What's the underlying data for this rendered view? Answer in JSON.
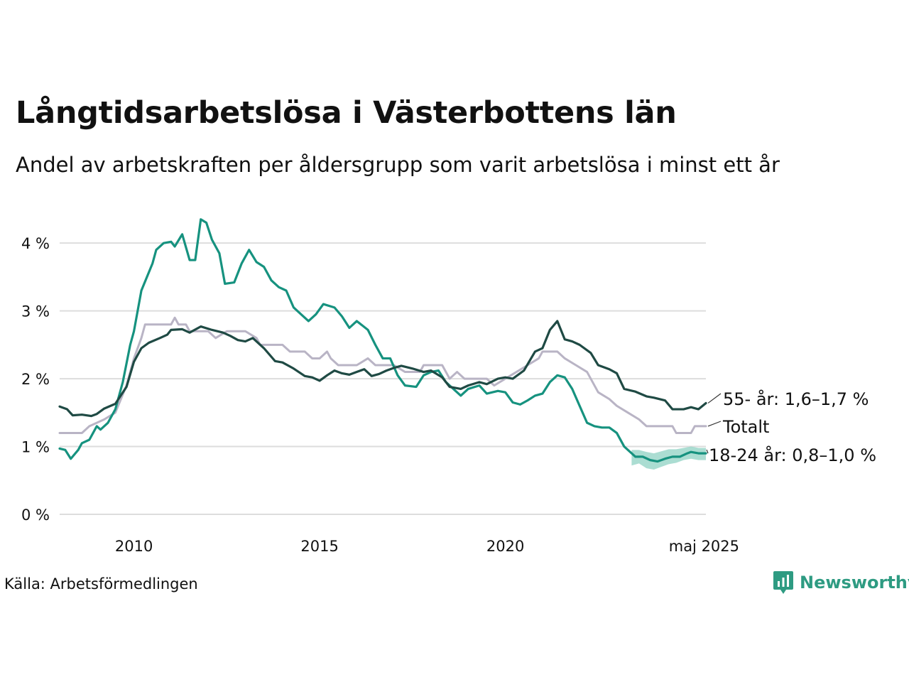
{
  "title": "Långtidsarbetslösa i Västerbottens län",
  "subtitle": "Andel av arbetskraften per åldersgrupp som varit arbetslösa i minst ett år",
  "source": "Källa: Arbetsförmedlingen",
  "brand": "Newsworthy",
  "colors": {
    "older": "#1f4a44",
    "total": "#b9b4c5",
    "youth": "#16927f",
    "youth_band": "#8fd1c3",
    "grid": "#dddddd",
    "brand": "#2e9b82"
  },
  "chart_data": {
    "type": "line",
    "ylim": [
      0,
      4.4
    ],
    "yticks": [
      {
        "value": 0,
        "label": "0 %"
      },
      {
        "value": 1,
        "label": "1 %"
      },
      {
        "value": 2,
        "label": "2 %"
      },
      {
        "value": 3,
        "label": "3 %"
      },
      {
        "value": 4,
        "label": "4 %"
      }
    ],
    "xlim": [
      2008.0,
      2025.4
    ],
    "xticks": [
      {
        "value": 2010,
        "label": "2010"
      },
      {
        "value": 2015,
        "label": "2015"
      },
      {
        "value": 2020,
        "label": "2020"
      },
      {
        "value": 2025.35,
        "label": "maj 2025"
      }
    ],
    "series": [
      {
        "name": "55- år",
        "end_label": "55- år: 1,6–1,7 %",
        "color": "older",
        "points": [
          [
            2008.0,
            1.59
          ],
          [
            2008.2,
            1.55
          ],
          [
            2008.35,
            1.46
          ],
          [
            2008.6,
            1.47
          ],
          [
            2008.85,
            1.45
          ],
          [
            2009.0,
            1.48
          ],
          [
            2009.2,
            1.56
          ],
          [
            2009.5,
            1.63
          ],
          [
            2009.8,
            1.88
          ],
          [
            2010.0,
            2.25
          ],
          [
            2010.2,
            2.45
          ],
          [
            2010.4,
            2.53
          ],
          [
            2010.7,
            2.6
          ],
          [
            2010.9,
            2.65
          ],
          [
            2011.0,
            2.72
          ],
          [
            2011.3,
            2.73
          ],
          [
            2011.5,
            2.68
          ],
          [
            2011.8,
            2.77
          ],
          [
            2012.1,
            2.72
          ],
          [
            2012.4,
            2.68
          ],
          [
            2012.6,
            2.63
          ],
          [
            2012.8,
            2.57
          ],
          [
            2013.0,
            2.55
          ],
          [
            2013.2,
            2.6
          ],
          [
            2013.5,
            2.45
          ],
          [
            2013.8,
            2.26
          ],
          [
            2014.0,
            2.24
          ],
          [
            2014.3,
            2.15
          ],
          [
            2014.6,
            2.04
          ],
          [
            2014.8,
            2.02
          ],
          [
            2015.0,
            1.97
          ],
          [
            2015.2,
            2.05
          ],
          [
            2015.4,
            2.12
          ],
          [
            2015.6,
            2.08
          ],
          [
            2015.8,
            2.06
          ],
          [
            2016.0,
            2.1
          ],
          [
            2016.2,
            2.14
          ],
          [
            2016.4,
            2.04
          ],
          [
            2016.6,
            2.07
          ],
          [
            2016.8,
            2.12
          ],
          [
            2017.0,
            2.16
          ],
          [
            2017.2,
            2.19
          ],
          [
            2017.5,
            2.15
          ],
          [
            2017.8,
            2.1
          ],
          [
            2018.0,
            2.12
          ],
          [
            2018.3,
            2.02
          ],
          [
            2018.5,
            1.88
          ],
          [
            2018.8,
            1.85
          ],
          [
            2019.0,
            1.9
          ],
          [
            2019.3,
            1.95
          ],
          [
            2019.5,
            1.92
          ],
          [
            2019.8,
            2.0
          ],
          [
            2020.0,
            2.02
          ],
          [
            2020.2,
            2.0
          ],
          [
            2020.5,
            2.12
          ],
          [
            2020.8,
            2.4
          ],
          [
            2021.0,
            2.45
          ],
          [
            2021.2,
            2.72
          ],
          [
            2021.4,
            2.85
          ],
          [
            2021.6,
            2.58
          ],
          [
            2021.8,
            2.55
          ],
          [
            2022.0,
            2.5
          ],
          [
            2022.3,
            2.38
          ],
          [
            2022.5,
            2.2
          ],
          [
            2022.8,
            2.14
          ],
          [
            2023.0,
            2.08
          ],
          [
            2023.2,
            1.85
          ],
          [
            2023.5,
            1.81
          ],
          [
            2023.8,
            1.74
          ],
          [
            2024.0,
            1.72
          ],
          [
            2024.3,
            1.68
          ],
          [
            2024.5,
            1.55
          ],
          [
            2024.8,
            1.55
          ],
          [
            2025.0,
            1.58
          ],
          [
            2025.2,
            1.55
          ],
          [
            2025.4,
            1.64
          ]
        ]
      },
      {
        "name": "Totalt",
        "end_label": "Totalt",
        "color": "total",
        "points": [
          [
            2008.0,
            1.2
          ],
          [
            2008.6,
            1.2
          ],
          [
            2008.8,
            1.3
          ],
          [
            2009.2,
            1.4
          ],
          [
            2009.5,
            1.5
          ],
          [
            2009.8,
            1.9
          ],
          [
            2010.0,
            2.3
          ],
          [
            2010.2,
            2.6
          ],
          [
            2010.3,
            2.8
          ],
          [
            2010.5,
            2.8
          ],
          [
            2011.0,
            2.8
          ],
          [
            2011.1,
            2.9
          ],
          [
            2011.2,
            2.8
          ],
          [
            2011.4,
            2.8
          ],
          [
            2011.5,
            2.7
          ],
          [
            2012.0,
            2.7
          ],
          [
            2012.2,
            2.6
          ],
          [
            2012.5,
            2.7
          ],
          [
            2013.0,
            2.7
          ],
          [
            2013.3,
            2.6
          ],
          [
            2013.4,
            2.5
          ],
          [
            2014.0,
            2.5
          ],
          [
            2014.2,
            2.4
          ],
          [
            2014.6,
            2.4
          ],
          [
            2014.8,
            2.3
          ],
          [
            2015.0,
            2.3
          ],
          [
            2015.2,
            2.4
          ],
          [
            2015.3,
            2.3
          ],
          [
            2015.5,
            2.2
          ],
          [
            2016.0,
            2.2
          ],
          [
            2016.3,
            2.3
          ],
          [
            2016.5,
            2.2
          ],
          [
            2017.0,
            2.2
          ],
          [
            2017.3,
            2.1
          ],
          [
            2017.7,
            2.1
          ],
          [
            2017.8,
            2.2
          ],
          [
            2018.3,
            2.2
          ],
          [
            2018.5,
            2.0
          ],
          [
            2018.7,
            2.1
          ],
          [
            2018.9,
            2.0
          ],
          [
            2019.5,
            2.0
          ],
          [
            2019.7,
            1.9
          ],
          [
            2020.0,
            2.0
          ],
          [
            2020.3,
            2.1
          ],
          [
            2020.6,
            2.2
          ],
          [
            2020.9,
            2.3
          ],
          [
            2021.0,
            2.4
          ],
          [
            2021.4,
            2.4
          ],
          [
            2021.6,
            2.3
          ],
          [
            2021.9,
            2.2
          ],
          [
            2022.2,
            2.1
          ],
          [
            2022.5,
            1.8
          ],
          [
            2022.8,
            1.7
          ],
          [
            2023.0,
            1.6
          ],
          [
            2023.3,
            1.5
          ],
          [
            2023.6,
            1.4
          ],
          [
            2023.8,
            1.3
          ],
          [
            2024.0,
            1.3
          ],
          [
            2024.5,
            1.3
          ],
          [
            2024.6,
            1.2
          ],
          [
            2025.0,
            1.2
          ],
          [
            2025.1,
            1.3
          ],
          [
            2025.4,
            1.3
          ]
        ]
      },
      {
        "name": "18-24 år",
        "end_label": "18-24 år: 0,8–1,0 %",
        "color": "youth",
        "points": [
          [
            2008.0,
            0.97
          ],
          [
            2008.15,
            0.95
          ],
          [
            2008.3,
            0.82
          ],
          [
            2008.5,
            0.95
          ],
          [
            2008.6,
            1.05
          ],
          [
            2008.8,
            1.1
          ],
          [
            2009.0,
            1.3
          ],
          [
            2009.1,
            1.25
          ],
          [
            2009.3,
            1.35
          ],
          [
            2009.5,
            1.55
          ],
          [
            2009.7,
            1.95
          ],
          [
            2009.9,
            2.5
          ],
          [
            2010.0,
            2.7
          ],
          [
            2010.2,
            3.3
          ],
          [
            2010.5,
            3.7
          ],
          [
            2010.6,
            3.9
          ],
          [
            2010.8,
            4.0
          ],
          [
            2011.0,
            4.02
          ],
          [
            2011.1,
            3.95
          ],
          [
            2011.3,
            4.13
          ],
          [
            2011.5,
            3.75
          ],
          [
            2011.65,
            3.75
          ],
          [
            2011.8,
            4.35
          ],
          [
            2011.95,
            4.3
          ],
          [
            2012.1,
            4.05
          ],
          [
            2012.3,
            3.85
          ],
          [
            2012.45,
            3.4
          ],
          [
            2012.7,
            3.42
          ],
          [
            2012.9,
            3.7
          ],
          [
            2013.1,
            3.9
          ],
          [
            2013.3,
            3.72
          ],
          [
            2013.5,
            3.65
          ],
          [
            2013.7,
            3.45
          ],
          [
            2013.9,
            3.35
          ],
          [
            2014.1,
            3.3
          ],
          [
            2014.3,
            3.05
          ],
          [
            2014.5,
            2.95
          ],
          [
            2014.7,
            2.85
          ],
          [
            2014.9,
            2.95
          ],
          [
            2015.1,
            3.1
          ],
          [
            2015.4,
            3.05
          ],
          [
            2015.6,
            2.92
          ],
          [
            2015.8,
            2.75
          ],
          [
            2016.0,
            2.85
          ],
          [
            2016.3,
            2.72
          ],
          [
            2016.5,
            2.5
          ],
          [
            2016.7,
            2.3
          ],
          [
            2016.9,
            2.3
          ],
          [
            2017.1,
            2.05
          ],
          [
            2017.3,
            1.9
          ],
          [
            2017.6,
            1.88
          ],
          [
            2017.8,
            2.05
          ],
          [
            2018.0,
            2.1
          ],
          [
            2018.2,
            2.12
          ],
          [
            2018.4,
            1.95
          ],
          [
            2018.6,
            1.85
          ],
          [
            2018.8,
            1.75
          ],
          [
            2019.0,
            1.85
          ],
          [
            2019.3,
            1.9
          ],
          [
            2019.5,
            1.78
          ],
          [
            2019.8,
            1.82
          ],
          [
            2020.0,
            1.8
          ],
          [
            2020.2,
            1.65
          ],
          [
            2020.4,
            1.62
          ],
          [
            2020.6,
            1.68
          ],
          [
            2020.8,
            1.75
          ],
          [
            2021.0,
            1.78
          ],
          [
            2021.2,
            1.95
          ],
          [
            2021.4,
            2.05
          ],
          [
            2021.6,
            2.02
          ],
          [
            2021.8,
            1.85
          ],
          [
            2022.0,
            1.6
          ],
          [
            2022.2,
            1.35
          ],
          [
            2022.4,
            1.3
          ],
          [
            2022.6,
            1.28
          ],
          [
            2022.8,
            1.28
          ],
          [
            2023.0,
            1.2
          ],
          [
            2023.2,
            1.0
          ],
          [
            2023.5,
            0.85
          ],
          [
            2023.7,
            0.85
          ],
          [
            2023.9,
            0.8
          ],
          [
            2024.1,
            0.78
          ],
          [
            2024.3,
            0.82
          ],
          [
            2024.5,
            0.85
          ],
          [
            2024.7,
            0.85
          ],
          [
            2024.9,
            0.9
          ],
          [
            2025.0,
            0.92
          ],
          [
            2025.2,
            0.9
          ],
          [
            2025.4,
            0.9
          ]
        ],
        "band": [
          [
            2023.4,
            0.72,
            0.95
          ],
          [
            2023.6,
            0.75,
            0.95
          ],
          [
            2023.8,
            0.68,
            0.92
          ],
          [
            2024.0,
            0.66,
            0.9
          ],
          [
            2024.2,
            0.7,
            0.93
          ],
          [
            2024.4,
            0.74,
            0.96
          ],
          [
            2024.6,
            0.76,
            0.96
          ],
          [
            2024.8,
            0.8,
            0.98
          ],
          [
            2025.0,
            0.82,
            1.0
          ],
          [
            2025.2,
            0.8,
            0.98
          ],
          [
            2025.4,
            0.8,
            0.98
          ]
        ]
      }
    ]
  }
}
